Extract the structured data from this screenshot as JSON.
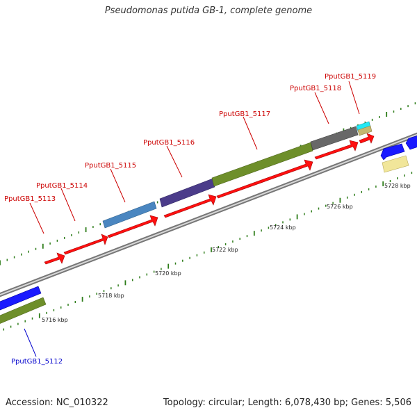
{
  "title": "Pseudomonas putida GB-1, complete genome",
  "footer": {
    "accession": "Accession: NC_010322",
    "summary": "Topology: circular; Length: 6,078,430 bp; Genes: 5,506"
  },
  "ruler_labels": [
    "5716 kbp",
    "5718 kbp",
    "5720 kbp",
    "5722 kbp",
    "5724 kbp",
    "5726 kbp",
    "5728 kbp"
  ],
  "gene_labels": [
    {
      "text": "PputGB1_5112",
      "color": "#0000cc"
    },
    {
      "text": "PputGB1_5113",
      "color": "#cc0000"
    },
    {
      "text": "PputGB1_5114",
      "color": "#cc0000"
    },
    {
      "text": "PputGB1_5115",
      "color": "#cc0000"
    },
    {
      "text": "PputGB1_5116",
      "color": "#cc0000"
    },
    {
      "text": "PputGB1_5117",
      "color": "#cc0000"
    },
    {
      "text": "PputGB1_5118",
      "color": "#cc0000"
    },
    {
      "text": "PputGB1_5119",
      "color": "#cc0000"
    }
  ],
  "colors": {
    "cds_forward": "#ff1010",
    "cds_reverse": "#1a1aff",
    "backbone": "#8c8c8c",
    "tick": "#2e7d1a"
  }
}
